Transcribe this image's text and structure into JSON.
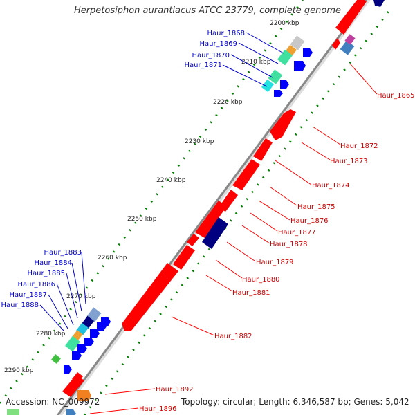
{
  "title": "Herpetosiphon aurantiacus ATCC 23779, complete genome",
  "footer": {
    "accession": "Accession: NC_009972",
    "topology": "Topology: circular; Length: 6,346,587 bp; Genes: 5,042"
  },
  "colors": {
    "forward_gene": "#ff0000",
    "reverse_gene": "#0000ff",
    "dark_gene": "#000080",
    "left_label": "#0000cc",
    "right_label": "#cc0000",
    "backbone": "#888888",
    "tick_dots": "#008000"
  },
  "kbp_ticks": [
    "2200 kbp",
    "2210 kbp",
    "2220 kbp",
    "2230 kbp",
    "2240 kbp",
    "2250 kbp",
    "2260 kbp",
    "2270 kbp",
    "2280 kbp",
    "2290 kbp"
  ],
  "right_labels": [
    "Haur_1865",
    "Haur_1872",
    "Haur_1873",
    "Haur_1874",
    "Haur_1875",
    "Haur_1876",
    "Haur_1877",
    "Haur_1878",
    "Haur_1879",
    "Haur_1880",
    "Haur_1881",
    "Haur_1882",
    "Haur_1892",
    "Haur_1896"
  ],
  "left_labels_top": [
    "Haur_1868",
    "Haur_1869",
    "Haur_1870",
    "Haur_1871"
  ],
  "left_labels_bottom": [
    "Haur_1883",
    "Haur_1884",
    "Haur_1885",
    "Haur_1886",
    "Haur_1887",
    "Haur_1888"
  ]
}
